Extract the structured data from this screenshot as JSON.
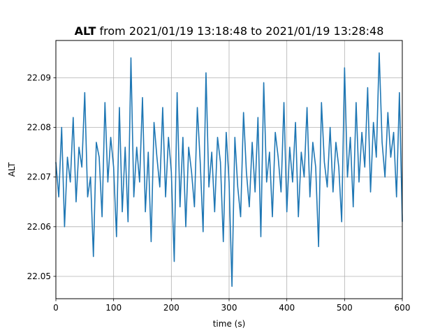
{
  "chart_data": {
    "type": "line",
    "title_bold": "ALT",
    "title_rest": " from 2021/01/19 13:18:48 to 2021/01/19 13:28:48",
    "xlabel": "time (s)",
    "ylabel": "ALT",
    "xlim": [
      0,
      600
    ],
    "ylim": [
      22.0455,
      22.0975
    ],
    "xticks": [
      0,
      100,
      200,
      300,
      400,
      500,
      600
    ],
    "xtick_labels": [
      "0",
      "100",
      "200",
      "300",
      "400",
      "500",
      "600"
    ],
    "yticks": [
      22.05,
      22.06,
      22.07,
      22.08,
      22.09
    ],
    "ytick_labels": [
      "22.05",
      "22.06",
      "22.07",
      "22.08",
      "22.09"
    ],
    "grid": true,
    "line_color": "#1f77b4",
    "series": [
      {
        "x": [
          0,
          5,
          10,
          15,
          20,
          25,
          30,
          35,
          40,
          45,
          50,
          55,
          60,
          65,
          70,
          75,
          80,
          85,
          90,
          95,
          100,
          105,
          110,
          115,
          120,
          125,
          130,
          135,
          140,
          145,
          150,
          155,
          160,
          165,
          170,
          175,
          180,
          185,
          190,
          195,
          200,
          205,
          210,
          215,
          220,
          225,
          230,
          235,
          240,
          245,
          250,
          255,
          260,
          265,
          270,
          275,
          280,
          285,
          290,
          295,
          300,
          305,
          310,
          315,
          320,
          325,
          330,
          335,
          340,
          345,
          350,
          355,
          360,
          365,
          370,
          375,
          380,
          385,
          390,
          395,
          400,
          405,
          410,
          415,
          420,
          425,
          430,
          435,
          440,
          445,
          450,
          455,
          460,
          465,
          470,
          475,
          480,
          485,
          490,
          495,
          500,
          505,
          510,
          515,
          520,
          525,
          530,
          535,
          540,
          545,
          550,
          555,
          560,
          565,
          570,
          575,
          580,
          585,
          590,
          595,
          600
        ],
        "y": [
          22.073,
          22.066,
          22.08,
          22.06,
          22.074,
          22.069,
          22.082,
          22.065,
          22.076,
          22.072,
          22.087,
          22.066,
          22.07,
          22.054,
          22.077,
          22.074,
          22.062,
          22.085,
          22.069,
          22.078,
          22.072,
          22.058,
          22.084,
          22.063,
          22.076,
          22.061,
          22.094,
          22.066,
          22.076,
          22.069,
          22.086,
          22.063,
          22.075,
          22.057,
          22.081,
          22.074,
          22.068,
          22.084,
          22.066,
          22.078,
          22.071,
          22.053,
          22.087,
          22.064,
          22.078,
          22.06,
          22.076,
          22.071,
          22.064,
          22.084,
          22.073,
          22.059,
          22.091,
          22.068,
          22.075,
          22.063,
          22.078,
          22.073,
          22.057,
          22.079,
          22.069,
          22.048,
          22.078,
          22.068,
          22.062,
          22.083,
          22.071,
          22.064,
          22.077,
          22.067,
          22.082,
          22.058,
          22.089,
          22.069,
          22.075,
          22.062,
          22.079,
          22.074,
          22.067,
          22.085,
          22.063,
          22.076,
          22.069,
          22.081,
          22.062,
          22.075,
          22.07,
          22.084,
          22.066,
          22.077,
          22.072,
          22.056,
          22.085,
          22.073,
          22.068,
          22.08,
          22.067,
          22.077,
          22.072,
          22.061,
          22.092,
          22.07,
          22.078,
          22.064,
          22.085,
          22.069,
          22.079,
          22.072,
          22.088,
          22.067,
          22.081,
          22.074,
          22.095,
          22.077,
          22.07,
          22.083,
          22.074,
          22.079,
          22.066,
          22.087,
          22.061
        ]
      }
    ]
  }
}
